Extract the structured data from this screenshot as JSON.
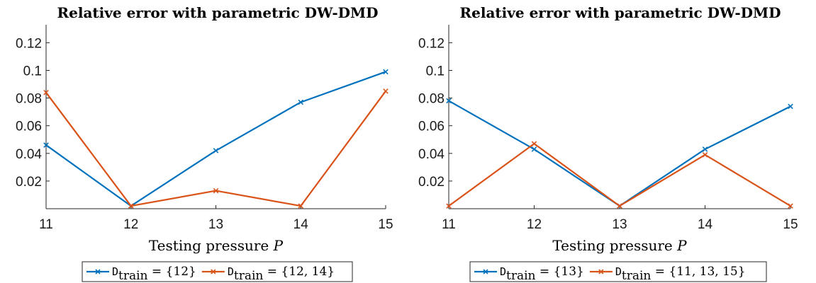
{
  "chart_data": [
    {
      "type": "line",
      "title": "Relative error with parametric DW-DMD",
      "xlabel": "Testing pressure P",
      "ylabel": "",
      "x": [
        11,
        12,
        13,
        14,
        15
      ],
      "xlim": [
        11,
        15
      ],
      "ylim": [
        0,
        0.133
      ],
      "xticks": [
        "11",
        "12",
        "13",
        "14",
        "15"
      ],
      "yticks": [
        0.02,
        0.04,
        0.06,
        0.08,
        0.1,
        0.12
      ],
      "ytick_labels": [
        "0.02",
        "0.04",
        "0.06",
        "0.08",
        "0.1",
        "0.12"
      ],
      "grid": false,
      "legend_position": "bottom",
      "series": [
        {
          "name": "D_train = {12}",
          "legend_sub": "train",
          "legend_set": "= {12}",
          "color": "#0072BD",
          "values": [
            0.046,
            0.002,
            0.042,
            0.077,
            0.099
          ]
        },
        {
          "name": "D_train = {12, 14}",
          "legend_sub": "train",
          "legend_set": "= {12, 14}",
          "color": "#D95319",
          "values": [
            0.084,
            0.002,
            0.013,
            0.002,
            0.085
          ]
        }
      ]
    },
    {
      "type": "line",
      "title": "Relative error with parametric DW-DMD",
      "xlabel": "Testing pressure P",
      "ylabel": "",
      "x": [
        11,
        12,
        13,
        14,
        15
      ],
      "xlim": [
        11,
        15
      ],
      "ylim": [
        0,
        0.133
      ],
      "xticks": [
        "11",
        "12",
        "13",
        "14",
        "15"
      ],
      "yticks": [
        0.02,
        0.04,
        0.06,
        0.08,
        0.1,
        0.12
      ],
      "ytick_labels": [
        "0.02",
        "0.04",
        "0.06",
        "0.08",
        "0.1",
        "0.12"
      ],
      "grid": false,
      "legend_position": "bottom",
      "series": [
        {
          "name": "D_train = {13}",
          "legend_sub": "train",
          "legend_set": "= {13}",
          "color": "#0072BD",
          "values": [
            0.078,
            0.043,
            0.002,
            0.043,
            0.074
          ]
        },
        {
          "name": "D_train = {11, 13, 15}",
          "legend_sub": "train",
          "legend_set": "= {11, 13, 15}",
          "color": "#D95319",
          "values": [
            0.002,
            0.047,
            0.002,
            0.039,
            0.002
          ]
        }
      ]
    }
  ]
}
